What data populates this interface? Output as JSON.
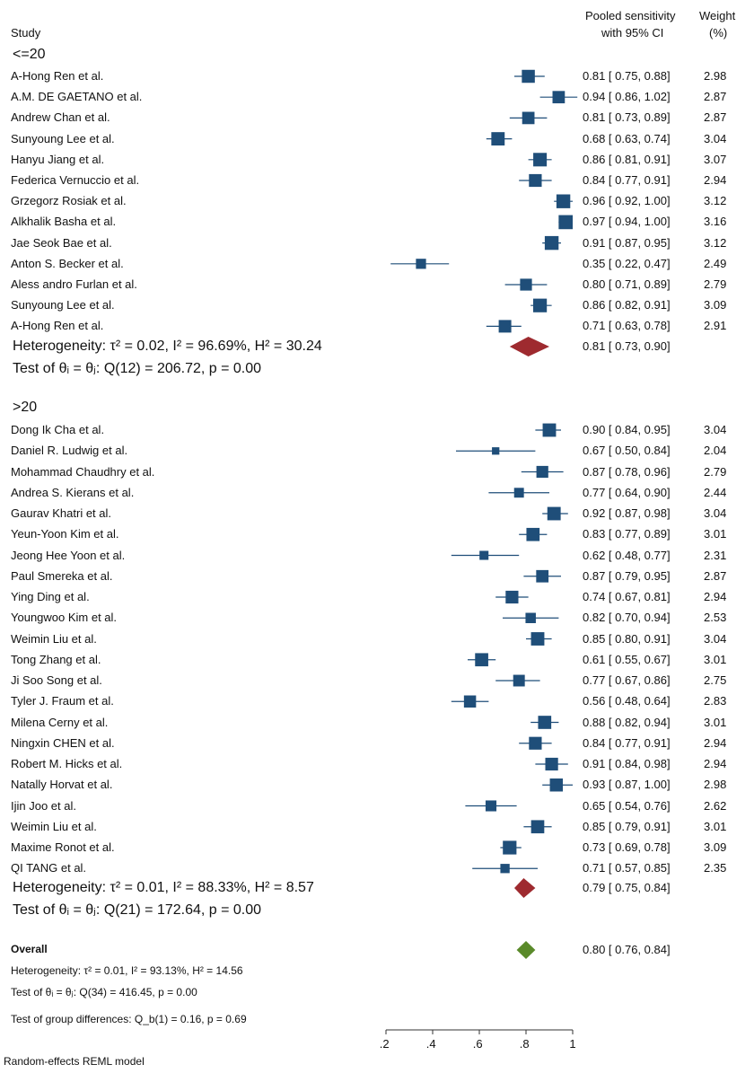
{
  "header": {
    "study_label": "Study",
    "est_header_line1": "Pooled sensitivity",
    "est_header_line2": "with 95% CI",
    "weight_header_line1": "Weight",
    "weight_header_line2": "(%)"
  },
  "chart_data": {
    "type": "forest",
    "xlim": [
      0.2,
      1.0
    ],
    "xticks": [
      ".2",
      ".4",
      ".6",
      ".8",
      "1"
    ],
    "groups": [
      {
        "label": "<=20",
        "studies": [
          {
            "name": "A-Hong Ren et al.",
            "est": 0.81,
            "lo": 0.75,
            "hi": 0.88,
            "weight": 2.98,
            "text": "0.81 [  0.75,  0.88]",
            "weight_text": "2.98"
          },
          {
            "name": "A.M. DE GAETANO et al.",
            "est": 0.94,
            "lo": 0.86,
            "hi": 1.02,
            "weight": 2.87,
            "text": "0.94 [  0.86,  1.02]",
            "weight_text": "2.87"
          },
          {
            "name": "Andrew Chan et al.",
            "est": 0.81,
            "lo": 0.73,
            "hi": 0.89,
            "weight": 2.87,
            "text": "0.81 [  0.73,  0.89]",
            "weight_text": "2.87"
          },
          {
            "name": "Sunyoung Lee et al.",
            "est": 0.68,
            "lo": 0.63,
            "hi": 0.74,
            "weight": 3.04,
            "text": "0.68 [  0.63,  0.74]",
            "weight_text": "3.04"
          },
          {
            "name": "Hanyu Jiang et al.",
            "est": 0.86,
            "lo": 0.81,
            "hi": 0.91,
            "weight": 3.07,
            "text": "0.86 [  0.81,  0.91]",
            "weight_text": "3.07"
          },
          {
            "name": "Federica Vernuccio et al.",
            "est": 0.84,
            "lo": 0.77,
            "hi": 0.91,
            "weight": 2.94,
            "text": "0.84 [  0.77,  0.91]",
            "weight_text": "2.94"
          },
          {
            "name": "Grzegorz Rosiak et al.",
            "est": 0.96,
            "lo": 0.92,
            "hi": 1.0,
            "weight": 3.12,
            "text": "0.96 [  0.92,  1.00]",
            "weight_text": "3.12"
          },
          {
            "name": "Alkhalik Basha et al.",
            "est": 0.97,
            "lo": 0.94,
            "hi": 1.0,
            "weight": 3.16,
            "text": "0.97 [  0.94,  1.00]",
            "weight_text": "3.16"
          },
          {
            "name": "Jae Seok Bae et al.",
            "est": 0.91,
            "lo": 0.87,
            "hi": 0.95,
            "weight": 3.12,
            "text": "0.91 [  0.87,  0.95]",
            "weight_text": "3.12"
          },
          {
            "name": "Anton S. Becker et al.",
            "est": 0.35,
            "lo": 0.22,
            "hi": 0.47,
            "weight": 2.49,
            "text": "0.35 [  0.22,  0.47]",
            "weight_text": "2.49"
          },
          {
            "name": "Aless andro Furlan et al.",
            "est": 0.8,
            "lo": 0.71,
            "hi": 0.89,
            "weight": 2.79,
            "text": "0.80 [  0.71,  0.89]",
            "weight_text": "2.79"
          },
          {
            "name": "Sunyoung Lee et al.",
            "est": 0.86,
            "lo": 0.82,
            "hi": 0.91,
            "weight": 3.09,
            "text": "0.86 [  0.82,  0.91]",
            "weight_text": "3.09"
          },
          {
            "name": "A-Hong Ren et al.",
            "est": 0.71,
            "lo": 0.63,
            "hi": 0.78,
            "weight": 2.91,
            "text": "0.71 [  0.63,  0.78]",
            "weight_text": "2.91"
          }
        ],
        "pooled": {
          "est": 0.81,
          "lo": 0.73,
          "hi": 0.9,
          "text": "0.81 [  0.73,  0.90]"
        },
        "heterogeneity_text": "Heterogeneity: τ² = 0.02, I² = 96.69%, H² = 30.24",
        "test_text": "Test of θᵢ = θⱼ: Q(12) = 206.72, p = 0.00"
      },
      {
        "label": ">20",
        "studies": [
          {
            "name": "Dong Ik Cha et al.",
            "est": 0.9,
            "lo": 0.84,
            "hi": 0.95,
            "weight": 3.04,
            "text": "0.90 [  0.84,  0.95]",
            "weight_text": "3.04"
          },
          {
            "name": "Daniel R. Ludwig et al.",
            "est": 0.67,
            "lo": 0.5,
            "hi": 0.84,
            "weight": 2.04,
            "text": "0.67 [  0.50,  0.84]",
            "weight_text": "2.04"
          },
          {
            "name": "Mohammad Chaudhry et al.",
            "est": 0.87,
            "lo": 0.78,
            "hi": 0.96,
            "weight": 2.79,
            "text": "0.87 [  0.78,  0.96]",
            "weight_text": "2.79"
          },
          {
            "name": "Andrea S. Kierans et al.",
            "est": 0.77,
            "lo": 0.64,
            "hi": 0.9,
            "weight": 2.44,
            "text": "0.77 [  0.64,  0.90]",
            "weight_text": "2.44"
          },
          {
            "name": "Gaurav Khatri et al.",
            "est": 0.92,
            "lo": 0.87,
            "hi": 0.98,
            "weight": 3.04,
            "text": "0.92 [  0.87,  0.98]",
            "weight_text": "3.04"
          },
          {
            "name": "Yeun-Yoon Kim et al.",
            "est": 0.83,
            "lo": 0.77,
            "hi": 0.89,
            "weight": 3.01,
            "text": "0.83 [  0.77,  0.89]",
            "weight_text": "3.01"
          },
          {
            "name": "Jeong Hee Yoon et al.",
            "est": 0.62,
            "lo": 0.48,
            "hi": 0.77,
            "weight": 2.31,
            "text": "0.62 [  0.48,  0.77]",
            "weight_text": "2.31"
          },
          {
            "name": "Paul Smereka et al.",
            "est": 0.87,
            "lo": 0.79,
            "hi": 0.95,
            "weight": 2.87,
            "text": "0.87 [  0.79,  0.95]",
            "weight_text": "2.87"
          },
          {
            "name": "Ying Ding et al.",
            "est": 0.74,
            "lo": 0.67,
            "hi": 0.81,
            "weight": 2.94,
            "text": "0.74 [  0.67,  0.81]",
            "weight_text": "2.94"
          },
          {
            "name": "Youngwoo Kim et al.",
            "est": 0.82,
            "lo": 0.7,
            "hi": 0.94,
            "weight": 2.53,
            "text": "0.82 [  0.70,  0.94]",
            "weight_text": "2.53"
          },
          {
            "name": "Weimin Liu et al.",
            "est": 0.85,
            "lo": 0.8,
            "hi": 0.91,
            "weight": 3.04,
            "text": "0.85 [  0.80,  0.91]",
            "weight_text": "3.04"
          },
          {
            "name": "Tong Zhang et al.",
            "est": 0.61,
            "lo": 0.55,
            "hi": 0.67,
            "weight": 3.01,
            "text": "0.61 [  0.55,  0.67]",
            "weight_text": "3.01"
          },
          {
            "name": "Ji Soo Song et al.",
            "est": 0.77,
            "lo": 0.67,
            "hi": 0.86,
            "weight": 2.75,
            "text": "0.77 [  0.67,  0.86]",
            "weight_text": "2.75"
          },
          {
            "name": "Tyler J. Fraum et al.",
            "est": 0.56,
            "lo": 0.48,
            "hi": 0.64,
            "weight": 2.83,
            "text": "0.56 [  0.48,  0.64]",
            "weight_text": "2.83"
          },
          {
            "name": "Milena Cerny et al.",
            "est": 0.88,
            "lo": 0.82,
            "hi": 0.94,
            "weight": 3.01,
            "text": "0.88 [  0.82,  0.94]",
            "weight_text": "3.01"
          },
          {
            "name": "Ningxin CHEN et al.",
            "est": 0.84,
            "lo": 0.77,
            "hi": 0.91,
            "weight": 2.94,
            "text": "0.84 [  0.77,  0.91]",
            "weight_text": "2.94"
          },
          {
            "name": "Robert M. Hicks et al.",
            "est": 0.91,
            "lo": 0.84,
            "hi": 0.98,
            "weight": 2.94,
            "text": "0.91 [  0.84,  0.98]",
            "weight_text": "2.94"
          },
          {
            "name": "Natally Horvat et al.",
            "est": 0.93,
            "lo": 0.87,
            "hi": 1.0,
            "weight": 2.98,
            "text": "0.93 [  0.87,  1.00]",
            "weight_text": "2.98"
          },
          {
            "name": "Ijin Joo et al.",
            "est": 0.65,
            "lo": 0.54,
            "hi": 0.76,
            "weight": 2.62,
            "text": "0.65 [  0.54,  0.76]",
            "weight_text": "2.62"
          },
          {
            "name": "Weimin Liu et al.",
            "est": 0.85,
            "lo": 0.79,
            "hi": 0.91,
            "weight": 3.01,
            "text": "0.85 [  0.79,  0.91]",
            "weight_text": "3.01"
          },
          {
            "name": "Maxime Ronot et al.",
            "est": 0.73,
            "lo": 0.69,
            "hi": 0.78,
            "weight": 3.09,
            "text": "0.73 [  0.69,  0.78]",
            "weight_text": "3.09"
          },
          {
            "name": "QI TANG et al.",
            "est": 0.71,
            "lo": 0.57,
            "hi": 0.85,
            "weight": 2.35,
            "text": "0.71 [  0.57,  0.85]",
            "weight_text": "2.35"
          }
        ],
        "pooled": {
          "est": 0.79,
          "lo": 0.75,
          "hi": 0.84,
          "text": "0.79 [  0.75,  0.84]"
        },
        "heterogeneity_text": "Heterogeneity: τ² = 0.01, I² = 88.33%, H² = 8.57",
        "test_text": "Test of θᵢ = θⱼ: Q(21) = 172.64, p = 0.00"
      }
    ],
    "overall": {
      "label": "Overall",
      "est": 0.8,
      "lo": 0.76,
      "hi": 0.84,
      "text": "0.80 [  0.76,  0.84]",
      "heterogeneity_text": "Heterogeneity: τ² = 0.01, I² = 93.13%, H² = 14.56",
      "test_text": "Test of θᵢ = θⱼ: Q(34) = 416.45, p = 0.00",
      "group_diff_text": "Test of group differences: Q_b(1) = 0.16, p = 0.69"
    },
    "footer_text": "Random-effects REML model",
    "colors": {
      "study_marker": "#1f4e79",
      "group_diamond": "#9e2a2f",
      "overall_diamond": "#5a8a2a",
      "ci_line": "#1f4e79",
      "axis": "#333333"
    }
  }
}
